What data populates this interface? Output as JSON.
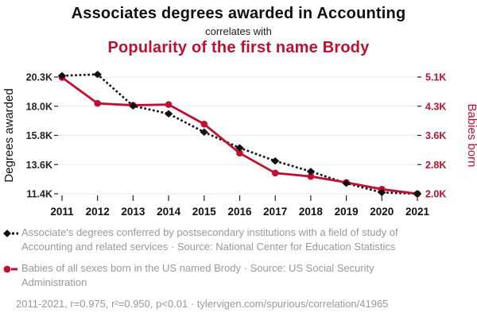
{
  "header": {
    "title": "Associates degrees awarded in Accounting",
    "subtitle": "correlates with",
    "correlate_title": "Popularity of the first name Brody"
  },
  "colors": {
    "accent_red": "#c01030",
    "series_black": "#111111",
    "grid": "#ececec",
    "tick": "#222222",
    "legend_text": "#999999"
  },
  "chart_data": {
    "type": "line",
    "x": [
      2011,
      2012,
      2013,
      2014,
      2015,
      2016,
      2017,
      2018,
      2019,
      2020,
      2021
    ],
    "x_tick_labels": [
      "2011",
      "2012",
      "2013",
      "2014",
      "2015",
      "2016",
      "2017",
      "2018",
      "2019",
      "2020",
      "2021"
    ],
    "series": [
      {
        "name": "Associates degrees awarded in Accounting",
        "axis": "left",
        "marker": "diamond",
        "line_style": "dashed",
        "color": "#111111",
        "values": [
          20400,
          20500,
          18100,
          17500,
          16100,
          14900,
          13900,
          13100,
          12200,
          11500,
          11400
        ]
      },
      {
        "name": "Popularity of the first name Brody",
        "axis": "right",
        "marker": "circle",
        "line_style": "solid",
        "color": "#c01030",
        "values": [
          5090,
          4400,
          4350,
          4370,
          3850,
          3080,
          2550,
          2460,
          2300,
          2120,
          2000
        ]
      }
    ],
    "left_axis": {
      "label": "Degrees awarded",
      "tick_labels": [
        "20.3K",
        "18.0K",
        "15.8K",
        "13.6K",
        "11.4K"
      ],
      "min": 11400,
      "max": 20300
    },
    "right_axis": {
      "label": "Babies born",
      "tick_labels": [
        "5.1K",
        "4.3K",
        "3.6K",
        "2.8K",
        "2.0K"
      ],
      "min": 2000,
      "max": 5100
    },
    "grid": true,
    "legend_position": "below"
  },
  "legend": {
    "items": [
      {
        "icon": "diamond-dashed-line-icon",
        "text": "Associate's degrees conferred by postsecondary institutions with a field of study of Accounting and related services · Source: National Center for Education Statistics"
      },
      {
        "icon": "circle-solid-line-icon",
        "text": "Babies of all sexes born in the US named Brody · Source: US Social Security Administration"
      }
    ]
  },
  "footer": {
    "stats": "2011-2021, r=0.975, r²=0.950, p<0.01 · tylervigen.com/spurious/correlation/41965"
  }
}
